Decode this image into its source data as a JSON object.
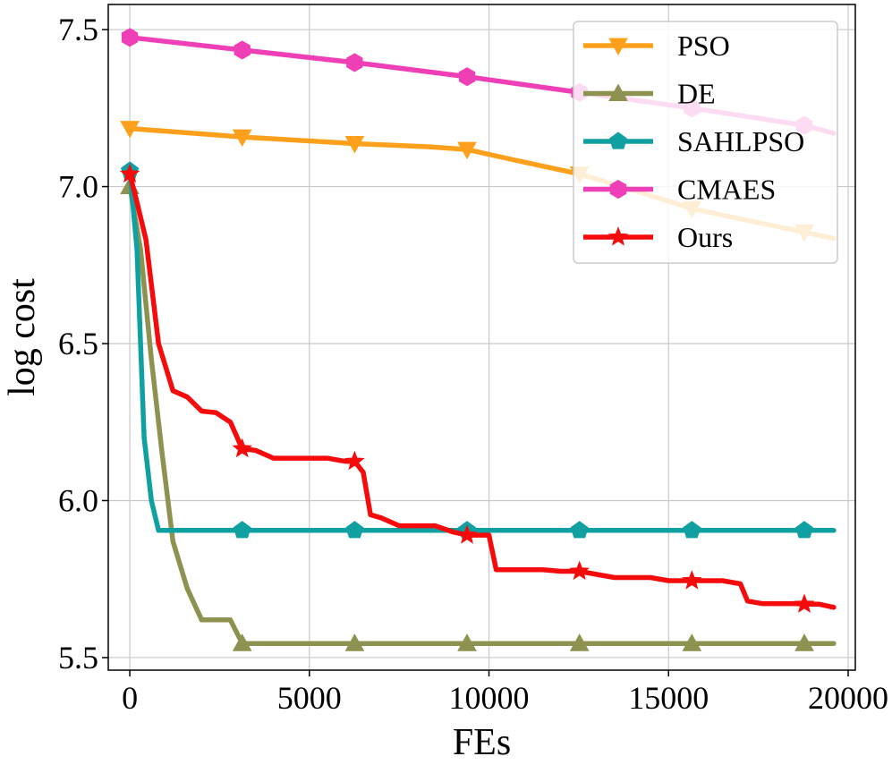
{
  "chart_data": {
    "type": "line",
    "title": "",
    "xlabel": "FEs",
    "ylabel": "log cost",
    "xlim": [
      -600,
      20200
    ],
    "ylim": [
      5.46,
      7.58
    ],
    "xticks": [
      0,
      5000,
      10000,
      15000,
      20000
    ],
    "xtick_labels": [
      "0",
      "5000",
      "10000",
      "15000",
      "20000"
    ],
    "yticks": [
      5.5,
      6.0,
      6.5,
      7.0,
      7.5
    ],
    "ytick_labels": [
      "5.5",
      "6.0",
      "6.5",
      "7.0",
      "7.5"
    ],
    "grid": true,
    "legend_position": "top-right",
    "series": [
      {
        "name": "PSO",
        "color": "#ffa01c",
        "marker": "triangle-down",
        "x": [
          0,
          3130,
          6260,
          8300,
          9390,
          10500,
          11500,
          12520,
          13700,
          15650,
          17500,
          18780,
          19600
        ],
        "y": [
          7.185,
          7.158,
          7.137,
          7.127,
          7.118,
          7.09,
          7.065,
          7.04,
          7.0,
          6.93,
          6.885,
          6.855,
          6.835
        ],
        "marker_x": [
          0,
          3130,
          6260,
          9390,
          12520,
          15650,
          18780
        ]
      },
      {
        "name": "DE",
        "color": "#8e9250",
        "marker": "triangle-up",
        "x": [
          0,
          300,
          600,
          900,
          1200,
          1600,
          2000,
          2400,
          2800,
          3130,
          19600
        ],
        "y": [
          7.0,
          6.8,
          6.45,
          6.15,
          5.87,
          5.72,
          5.62,
          5.62,
          5.62,
          5.545,
          5.545
        ],
        "marker_x": [
          0,
          3130,
          6260,
          9390,
          12520,
          15650,
          18780
        ]
      },
      {
        "name": "SAHLPSO",
        "color": "#10a0a2",
        "marker": "pentagon",
        "x": [
          0,
          200,
          400,
          600,
          800,
          19600
        ],
        "y": [
          7.05,
          6.8,
          6.2,
          6.0,
          5.905,
          5.905
        ],
        "marker_x": [
          0,
          3130,
          6260,
          9390,
          12520,
          15650,
          18780
        ]
      },
      {
        "name": "CMAES",
        "color": "#ee3fb7",
        "marker": "hexagon",
        "x": [
          0,
          3130,
          6260,
          9390,
          12520,
          15650,
          18780,
          19600
        ],
        "y": [
          7.475,
          7.435,
          7.395,
          7.35,
          7.3,
          7.25,
          7.195,
          7.17
        ],
        "marker_x": [
          0,
          3130,
          6260,
          9390,
          12520,
          15650,
          18780
        ]
      },
      {
        "name": "Ours",
        "color": "#f50b0b",
        "marker": "star",
        "x": [
          0,
          200,
          450,
          800,
          1200,
          1600,
          2000,
          2400,
          2800,
          3130,
          3500,
          4000,
          4500,
          5000,
          5500,
          6000,
          6260,
          6500,
          6700,
          7000,
          7500,
          8000,
          8500,
          9000,
          9390,
          9600,
          10000,
          10200,
          11000,
          11500,
          12000,
          12520,
          13000,
          13500,
          14000,
          14500,
          15000,
          15650,
          16000,
          16500,
          17000,
          17200,
          17600,
          18000,
          18500,
          18780,
          19200,
          19600
        ],
        "y": [
          7.04,
          6.95,
          6.83,
          6.5,
          6.35,
          6.33,
          6.285,
          6.28,
          6.25,
          6.165,
          6.16,
          6.135,
          6.135,
          6.135,
          6.135,
          6.125,
          6.125,
          6.09,
          5.955,
          5.945,
          5.92,
          5.92,
          5.92,
          5.9,
          5.89,
          5.89,
          5.89,
          5.78,
          5.78,
          5.78,
          5.775,
          5.775,
          5.765,
          5.755,
          5.755,
          5.755,
          5.745,
          5.745,
          5.745,
          5.745,
          5.735,
          5.68,
          5.672,
          5.672,
          5.672,
          5.67,
          5.67,
          5.66
        ],
        "marker_x": [
          0,
          3130,
          6260,
          9390,
          12520,
          15650,
          18780
        ]
      }
    ]
  }
}
